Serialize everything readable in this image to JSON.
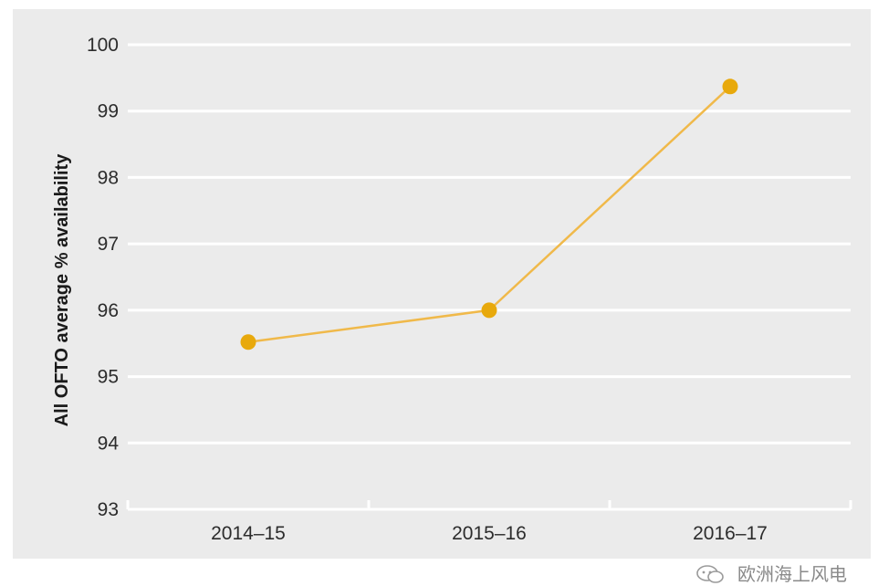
{
  "chart_data": {
    "type": "line",
    "title": "",
    "xlabel": "",
    "ylabel": "All OFTO average % availability",
    "categories": [
      "2014–15",
      "2015–16",
      "2016–17"
    ],
    "series": [
      {
        "values": [
          95.52,
          96.0,
          99.37
        ]
      }
    ],
    "ylim": [
      93,
      100
    ],
    "yticks": [
      93,
      94,
      95,
      96,
      97,
      98,
      99,
      100
    ],
    "grid": true,
    "legend": "none"
  },
  "colors": {
    "plot_background": "#ebebeb",
    "gridline": "#ffffff",
    "line": "#f0b94a",
    "marker": "#e8a90c"
  },
  "watermark": {
    "icon": "wechat-icon",
    "text": "欧洲海上风电"
  }
}
